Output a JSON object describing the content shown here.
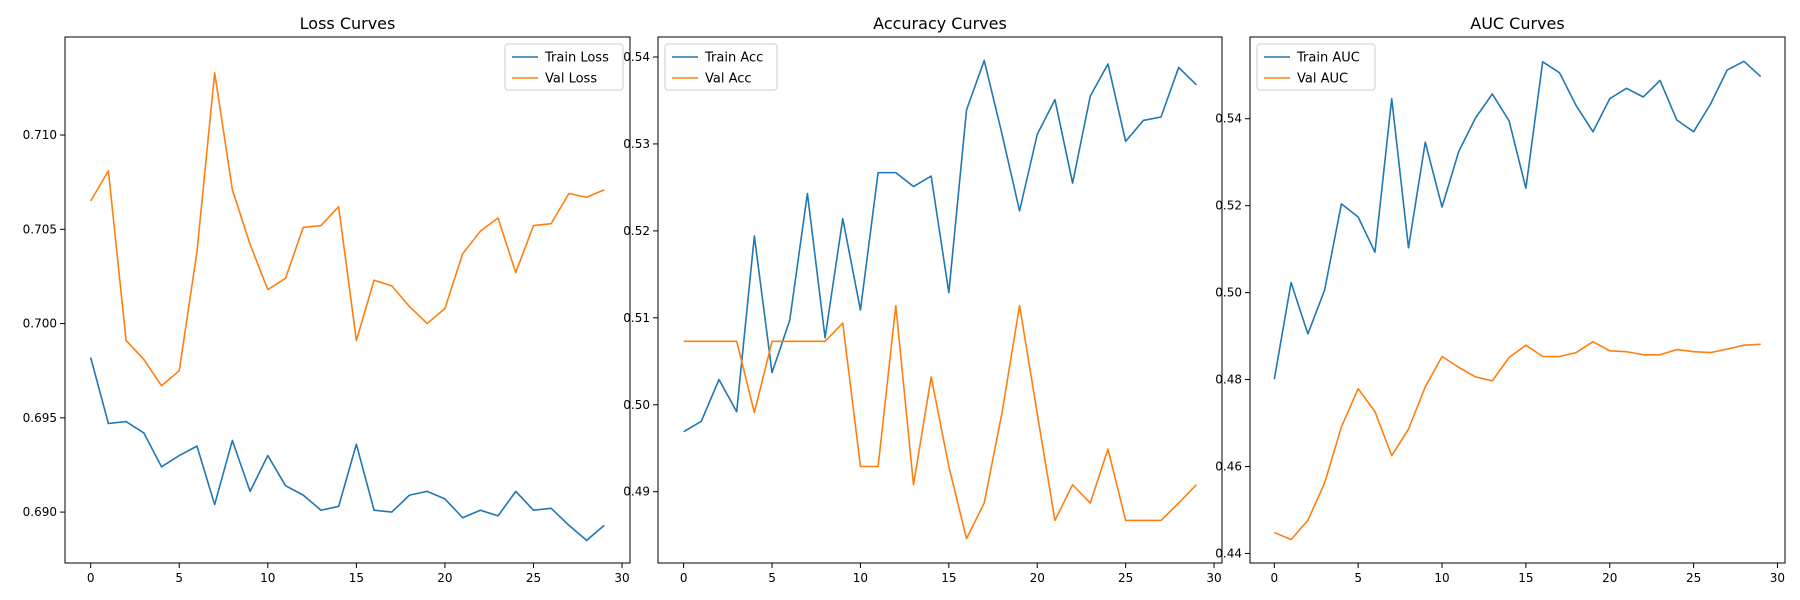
{
  "chart_data": [
    {
      "type": "line",
      "title": "Loss Curves",
      "xlim": [
        -1.45,
        30.45
      ],
      "ylim": [
        0.6873,
        0.7152
      ],
      "xticks": [
        0,
        5,
        10,
        15,
        20,
        25,
        30
      ],
      "yticks": [
        0.69,
        0.695,
        0.7,
        0.705,
        0.71
      ],
      "ytick_labels": [
        "0.690",
        "0.695",
        "0.700",
        "0.705",
        "0.710"
      ],
      "legend_position": "top-right",
      "x": [
        0,
        1,
        2,
        3,
        4,
        5,
        6,
        7,
        8,
        9,
        10,
        11,
        12,
        13,
        14,
        15,
        16,
        17,
        18,
        19,
        20,
        21,
        22,
        23,
        24,
        25,
        26,
        27,
        28,
        29
      ],
      "series": [
        {
          "name": "Train Loss",
          "color": "#1f77b4",
          "values": [
            0.6982,
            0.6947,
            0.6948,
            0.6942,
            0.6924,
            0.693,
            0.6935,
            0.6904,
            0.6938,
            0.6911,
            0.693,
            0.6914,
            0.6909,
            0.6901,
            0.6903,
            0.6936,
            0.6901,
            0.69,
            0.6909,
            0.6911,
            0.6907,
            0.6897,
            0.6901,
            0.6898,
            0.6911,
            0.6901,
            0.6902,
            0.6893,
            0.6885,
            0.6893
          ]
        },
        {
          "name": "Val Loss",
          "color": "#ff7f0e",
          "values": [
            0.7065,
            0.7081,
            0.6991,
            0.6981,
            0.6967,
            0.6975,
            0.7038,
            0.7133,
            0.7071,
            0.7042,
            0.7018,
            0.7024,
            0.7051,
            0.7052,
            0.7062,
            0.6991,
            0.7023,
            0.702,
            0.7009,
            0.7,
            0.7008,
            0.7037,
            0.7049,
            0.7056,
            0.7027,
            0.7052,
            0.7053,
            0.7069,
            0.7067,
            0.7071
          ]
        }
      ]
    },
    {
      "type": "line",
      "title": "Accuracy Curves",
      "xlim": [
        -1.45,
        30.45
      ],
      "ylim": [
        0.4818,
        0.5423
      ],
      "xticks": [
        0,
        5,
        10,
        15,
        20,
        25,
        30
      ],
      "yticks": [
        0.49,
        0.5,
        0.51,
        0.52,
        0.53,
        0.54
      ],
      "ytick_labels": [
        "0.49",
        "0.50",
        "0.51",
        "0.52",
        "0.53",
        "0.54"
      ],
      "legend_position": "top-left",
      "x": [
        0,
        1,
        2,
        3,
        4,
        5,
        6,
        7,
        8,
        9,
        10,
        11,
        12,
        13,
        14,
        15,
        16,
        17,
        18,
        19,
        20,
        21,
        22,
        23,
        24,
        25,
        26,
        27,
        28,
        29
      ],
      "series": [
        {
          "name": "Train Acc",
          "color": "#1f77b4",
          "values": [
            0.4969,
            0.4981,
            0.5029,
            0.4992,
            0.5194,
            0.5037,
            0.5097,
            0.5243,
            0.5077,
            0.5214,
            0.5109,
            0.5267,
            0.5267,
            0.5251,
            0.5263,
            0.5129,
            0.5339,
            0.5396,
            0.5312,
            0.5223,
            0.5311,
            0.5351,
            0.5255,
            0.5355,
            0.5392,
            0.5303,
            0.5327,
            0.5331,
            0.5388,
            0.5368
          ]
        },
        {
          "name": "Val Acc",
          "color": "#ff7f0e",
          "values": [
            0.5073,
            0.5073,
            0.5073,
            0.5073,
            0.4991,
            0.5073,
            0.5073,
            0.5073,
            0.5073,
            0.5094,
            0.4929,
            0.4929,
            0.5114,
            0.4908,
            0.5032,
            0.4929,
            0.4846,
            0.4887,
            0.499,
            0.5114,
            0.499,
            0.4867,
            0.4908,
            0.4887,
            0.4949,
            0.4867,
            0.4867,
            0.4867,
            0.4887,
            0.4908
          ]
        }
      ]
    },
    {
      "type": "line",
      "title": "AUC Curves",
      "xlim": [
        -1.45,
        30.45
      ],
      "ylim": [
        0.4378,
        0.5588
      ],
      "xticks": [
        0,
        5,
        10,
        15,
        20,
        25,
        30
      ],
      "yticks": [
        0.44,
        0.46,
        0.48,
        0.5,
        0.52,
        0.54
      ],
      "ytick_labels": [
        "0.44",
        "0.46",
        "0.48",
        "0.50",
        "0.52",
        "0.54"
      ],
      "legend_position": "top-left",
      "x": [
        0,
        1,
        2,
        3,
        4,
        5,
        6,
        7,
        8,
        9,
        10,
        11,
        12,
        13,
        14,
        15,
        16,
        17,
        18,
        19,
        20,
        21,
        22,
        23,
        24,
        25,
        26,
        27,
        28,
        29
      ],
      "series": [
        {
          "name": "Train AUC",
          "color": "#1f77b4",
          "values": [
            0.4801,
            0.5023,
            0.4905,
            0.5006,
            0.5204,
            0.5174,
            0.5093,
            0.5446,
            0.5103,
            0.5346,
            0.5197,
            0.5325,
            0.5402,
            0.5457,
            0.5395,
            0.524,
            0.5531,
            0.5506,
            0.543,
            0.537,
            0.5446,
            0.547,
            0.545,
            0.5488,
            0.5397,
            0.537,
            0.5433,
            0.5512,
            0.5532,
            0.5497
          ]
        },
        {
          "name": "Val AUC",
          "color": "#ff7f0e",
          "values": [
            0.4448,
            0.4432,
            0.4476,
            0.4562,
            0.4691,
            0.4779,
            0.4726,
            0.4625,
            0.4686,
            0.4783,
            0.4853,
            0.4828,
            0.4806,
            0.4797,
            0.4851,
            0.4879,
            0.4853,
            0.4853,
            0.4862,
            0.4887,
            0.4866,
            0.4864,
            0.4857,
            0.4857,
            0.4869,
            0.4864,
            0.4862,
            0.487,
            0.4879,
            0.4881
          ]
        }
      ]
    }
  ]
}
